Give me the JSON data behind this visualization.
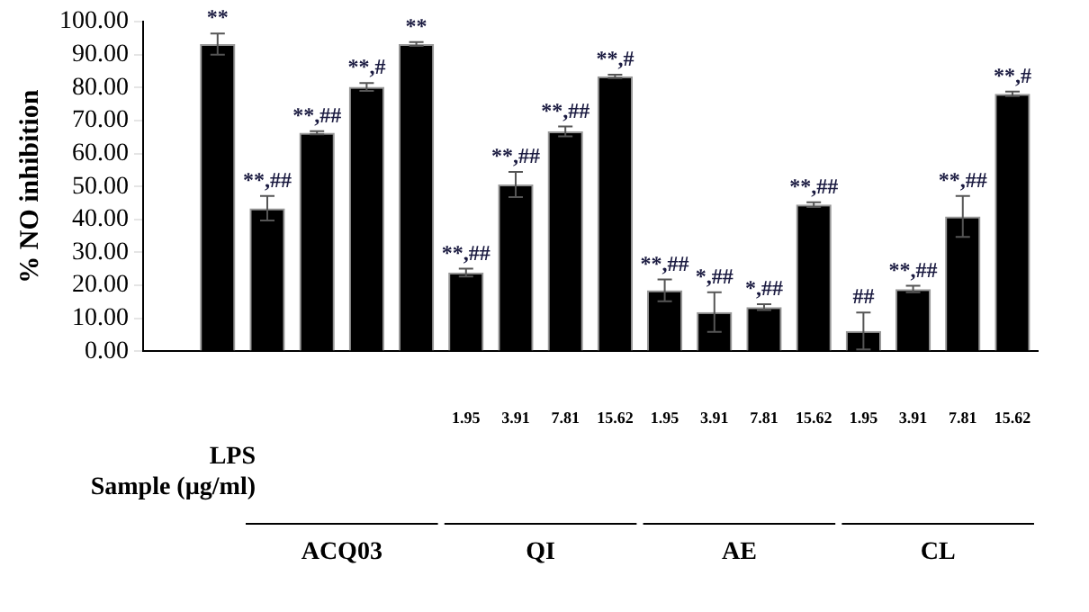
{
  "chart_data": {
    "type": "bar",
    "ylabel": "% NO inhibition",
    "categories": [
      null,
      null,
      null,
      null,
      null,
      null,
      "1.95",
      "3.91",
      "7.81",
      "15.62",
      "1.95",
      "3.91",
      "7.81",
      "15.62",
      "1.95",
      "3.91",
      "7.81",
      "15.62"
    ],
    "values": [
      0,
      93.2,
      43.4,
      66.3,
      80.2,
      93.2,
      23.9,
      50.6,
      66.7,
      83.4,
      18.5,
      11.9,
      13.4,
      44.5,
      6.2,
      18.9,
      40.9,
      78.1
    ],
    "errors": [
      null,
      3.2,
      3.7,
      0.5,
      1.2,
      0.6,
      1.2,
      3.8,
      1.5,
      0.5,
      3.3,
      6,
      0.9,
      0.7,
      5.6,
      1,
      6.2,
      0.7
    ],
    "value_labels": [
      null,
      "**",
      "**,##",
      "**,##",
      "**,#",
      "**",
      "**,##",
      "**,##",
      "**,##",
      "**,#",
      "**,##",
      "*,##",
      "*,##",
      "**,##",
      "##",
      "**,##",
      "**,##",
      "**,#"
    ],
    "color": "#000000",
    "ylim": [
      0,
      100
    ],
    "yticks": [
      {
        "value": 0,
        "label": "0.00"
      },
      {
        "value": 10,
        "label": "10.00"
      },
      {
        "value": 20,
        "label": "20.00"
      },
      {
        "value": 30,
        "label": "30.00"
      },
      {
        "value": 40,
        "label": "40.00"
      },
      {
        "value": 50,
        "label": "50.00"
      },
      {
        "value": 60,
        "label": "60.00"
      },
      {
        "value": 70,
        "label": "70.00"
      },
      {
        "value": 80,
        "label": "80.00"
      },
      {
        "value": 90,
        "label": "90.00"
      },
      {
        "value": 100,
        "label": "100.00"
      }
    ],
    "grid": false,
    "legend": false,
    "annotations": [
      "LPS",
      "Sample (µg/ml)",
      "ACQ03",
      "QI",
      "AE",
      "CL"
    ]
  }
}
